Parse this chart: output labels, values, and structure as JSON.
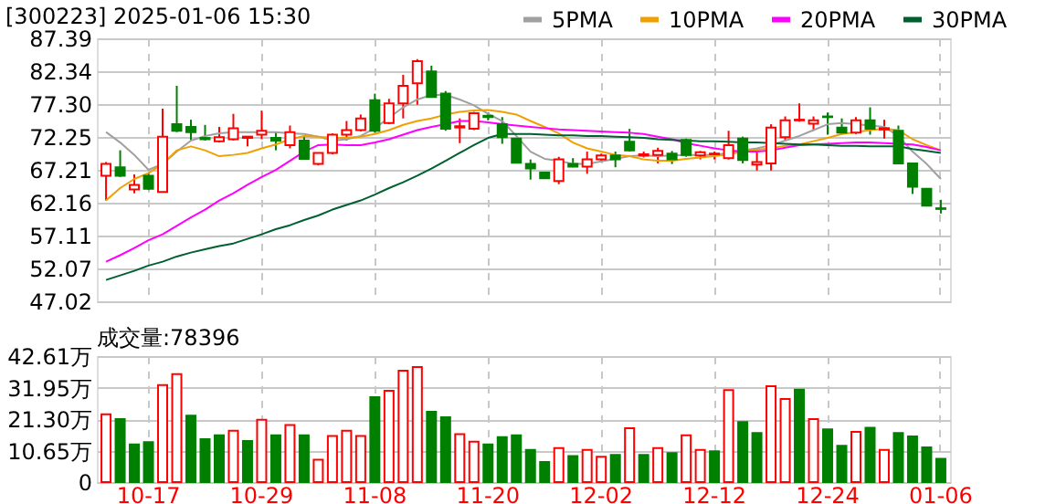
{
  "chart_data": [
    {
      "type": "candlestick",
      "title": "[300223] 2025-01-06 15:30",
      "categories": [
        null,
        null,
        null,
        null,
        null,
        null,
        null,
        null,
        null,
        null,
        null,
        null,
        null,
        null,
        null,
        null,
        null,
        null,
        null,
        null,
        null,
        null,
        null,
        null,
        null,
        null,
        null,
        null,
        null,
        null,
        null,
        null,
        null,
        null,
        null,
        null,
        null,
        null,
        null,
        null,
        null,
        null,
        null,
        null,
        null,
        null,
        null,
        null,
        null,
        null,
        null,
        null,
        null,
        null,
        null,
        null,
        null,
        null,
        null,
        null
      ],
      "ohlc": [
        [
          66.3,
          68.4,
          62.5,
          68.1
        ],
        [
          67.6,
          70.2,
          66.1,
          66.3
        ],
        [
          64.2,
          66.5,
          63.6,
          64.9
        ],
        [
          66.3,
          66.7,
          64.1,
          64.3
        ],
        [
          63.8,
          76.6,
          63.8,
          72.3
        ],
        [
          74.2,
          80.1,
          73.0,
          73.2
        ],
        [
          73.8,
          74.9,
          71.7,
          73.0
        ],
        [
          72.1,
          74.1,
          71.7,
          71.9
        ],
        [
          71.6,
          73.8,
          71.4,
          72.2
        ],
        [
          71.9,
          75.8,
          71.7,
          73.6
        ],
        [
          72.1,
          72.3,
          70.8,
          72.3
        ],
        [
          72.6,
          76.3,
          71.9,
          73.2
        ],
        [
          72.1,
          73.0,
          70.2,
          71.7
        ],
        [
          71.0,
          74.0,
          70.5,
          73.0
        ],
        [
          71.7,
          72.4,
          68.9,
          68.9
        ],
        [
          68.1,
          69.8,
          67.9,
          69.8
        ],
        [
          69.8,
          72.8,
          69.6,
          72.6
        ],
        [
          72.6,
          74.7,
          71.7,
          73.3
        ],
        [
          73.3,
          75.7,
          73.1,
          75.1
        ],
        [
          77.9,
          78.9,
          72.9,
          73.2
        ],
        [
          74.4,
          78.1,
          74.2,
          77.4
        ],
        [
          77.4,
          81.8,
          75.1,
          80.1
        ],
        [
          80.5,
          84.2,
          77.2,
          83.9
        ],
        [
          82.3,
          83.2,
          78.4,
          78.4
        ],
        [
          78.9,
          79.3,
          73.2,
          73.5
        ],
        [
          73.7,
          75.1,
          71.3,
          73.9
        ],
        [
          73.5,
          76.1,
          73.3,
          75.9
        ],
        [
          75.5,
          76.0,
          74.8,
          75.3
        ],
        [
          74.2,
          75.3,
          71.2,
          72.2
        ],
        [
          72.0,
          72.0,
          68.3,
          68.3
        ],
        [
          68.1,
          68.8,
          65.7,
          67.4
        ],
        [
          66.8,
          66.8,
          65.9,
          65.9
        ],
        [
          65.5,
          69.2,
          65.0,
          68.8
        ],
        [
          68.1,
          69.0,
          67.6,
          67.7
        ],
        [
          67.7,
          70.0,
          66.6,
          68.8
        ],
        [
          68.8,
          69.7,
          68.5,
          69.4
        ],
        [
          69.4,
          70.0,
          67.6,
          68.8
        ],
        [
          71.5,
          73.5,
          70.0,
          70.2
        ],
        [
          69.4,
          70.0,
          69.1,
          69.6
        ],
        [
          69.5,
          70.6,
          68.2,
          70.1
        ],
        [
          69.7,
          70.1,
          68.1,
          68.8
        ],
        [
          71.8,
          72.0,
          69.2,
          69.5
        ],
        [
          69.4,
          70.1,
          68.8,
          69.9
        ],
        [
          69.6,
          70.0,
          68.8,
          69.7
        ],
        [
          69.0,
          73.2,
          68.8,
          71.0
        ],
        [
          72.0,
          72.3,
          68.2,
          68.7
        ],
        [
          68.0,
          69.9,
          67.1,
          68.4
        ],
        [
          68.2,
          74.2,
          67.1,
          73.7
        ],
        [
          72.2,
          75.4,
          71.6,
          74.8
        ],
        [
          74.8,
          77.4,
          74.6,
          74.9
        ],
        [
          74.3,
          75.4,
          73.2,
          74.8
        ],
        [
          75.4,
          76.0,
          72.6,
          75.3
        ],
        [
          73.7,
          75.1,
          72.7,
          72.9
        ],
        [
          72.9,
          75.3,
          72.7,
          74.8
        ],
        [
          74.8,
          76.8,
          72.6,
          73.5
        ],
        [
          73.4,
          74.9,
          72.0,
          73.6
        ],
        [
          73.2,
          74.0,
          68.2,
          68.2
        ],
        [
          68.2,
          68.2,
          63.5,
          64.6
        ],
        [
          64.3,
          64.3,
          61.7,
          61.7
        ],
        [
          61.3,
          62.6,
          60.5,
          61.2
        ]
      ],
      "colors": [
        "#ff0000",
        "#008000",
        "#ff0000",
        "#008000",
        "#ff0000",
        "#008000",
        "#008000",
        "#008000",
        "#ff0000",
        "#ff0000",
        "#ff0000",
        "#ff0000",
        "#008000",
        "#ff0000",
        "#008000",
        "#ff0000",
        "#ff0000",
        "#ff0000",
        "#ff0000",
        "#008000",
        "#ff0000",
        "#ff0000",
        "#ff0000",
        "#008000",
        "#008000",
        "#ff0000",
        "#ff0000",
        "#008000",
        "#008000",
        "#008000",
        "#008000",
        "#008000",
        "#ff0000",
        "#008000",
        "#ff0000",
        "#ff0000",
        "#008000",
        "#008000",
        "#ff0000",
        "#ff0000",
        "#008000",
        "#008000",
        "#ff0000",
        "#ff0000",
        "#ff0000",
        "#008000",
        "#ff0000",
        "#ff0000",
        "#ff0000",
        "#ff0000",
        "#ff0000",
        "#008000",
        "#008000",
        "#ff0000",
        "#008000",
        "#ff0000",
        "#008000",
        "#008000",
        "#008000",
        "#008000"
      ],
      "series": [
        {
          "name": "5PMA",
          "type": "line",
          "color": "#a0a0a0",
          "values": [
            73.0,
            71.4,
            69.5,
            67.2,
            68.1,
            70.0,
            71.7,
            72.4,
            72.8,
            73.0,
            73.0,
            73.0,
            73.0,
            72.8,
            72.7,
            72.3,
            71.7,
            71.9,
            72.4,
            73.6,
            75.2,
            76.8,
            78.0,
            78.7,
            78.7,
            78.0,
            77.1,
            75.8,
            74.7,
            72.4,
            70.0,
            68.9,
            68.6,
            68.1,
            68.1,
            68.5,
            68.9,
            69.3,
            69.4,
            69.3,
            69.4,
            69.5,
            69.5,
            69.5,
            69.8,
            70.2,
            70.5,
            71.0,
            71.7,
            72.4,
            73.3,
            74.2,
            74.4,
            74.2,
            74.0,
            73.8,
            72.4,
            70.0,
            68.1,
            65.8
          ]
        },
        {
          "name": "10PMA",
          "type": "line",
          "color": "#f0a000",
          "values": [
            62.5,
            64.4,
            65.8,
            66.7,
            68.1,
            70.2,
            70.8,
            70.2,
            69.3,
            69.5,
            69.8,
            70.5,
            71.1,
            71.9,
            72.4,
            72.3,
            72.1,
            72.1,
            72.3,
            72.7,
            73.3,
            74.1,
            74.7,
            75.1,
            75.7,
            76.1,
            76.3,
            76.4,
            76.1,
            75.7,
            74.7,
            73.8,
            72.8,
            71.4,
            70.5,
            70.0,
            69.5,
            69.3,
            68.8,
            68.6,
            68.6,
            68.9,
            69.1,
            69.3,
            69.6,
            70.0,
            70.3,
            70.5,
            70.9,
            71.1,
            71.6,
            72.1,
            72.7,
            73.0,
            73.3,
            73.5,
            73.3,
            71.9,
            71.0,
            70.2
          ]
        },
        {
          "name": "20PMA",
          "type": "line",
          "color": "#ff00ff",
          "values": [
            53.1,
            54.1,
            55.2,
            56.4,
            57.3,
            58.6,
            59.9,
            61.1,
            62.5,
            63.6,
            64.9,
            66.1,
            67.2,
            68.6,
            70.0,
            71.0,
            71.1,
            71.0,
            71.0,
            71.4,
            71.9,
            72.6,
            73.3,
            73.8,
            74.2,
            74.7,
            74.7,
            74.5,
            74.2,
            74.0,
            73.8,
            73.6,
            73.4,
            73.3,
            73.2,
            73.1,
            73.0,
            72.9,
            72.7,
            72.3,
            71.9,
            71.3,
            70.9,
            70.5,
            70.2,
            70.0,
            70.0,
            70.2,
            70.6,
            71.0,
            71.1,
            71.2,
            71.3,
            71.4,
            71.4,
            71.3,
            71.2,
            71.1,
            70.7,
            70.2
          ]
        },
        {
          "name": "30PMA",
          "type": "line",
          "color": "#006030",
          "values": [
            50.3,
            51.0,
            51.7,
            52.5,
            53.1,
            53.9,
            54.5,
            55.0,
            55.5,
            55.9,
            56.6,
            57.3,
            58.1,
            58.7,
            59.5,
            60.2,
            61.1,
            61.8,
            62.5,
            63.4,
            64.4,
            65.3,
            66.3,
            67.4,
            68.6,
            69.8,
            71.0,
            72.1,
            72.7,
            72.7,
            72.7,
            72.6,
            72.5,
            72.5,
            72.4,
            72.4,
            72.3,
            72.2,
            72.1,
            71.9,
            71.8,
            71.7,
            71.6,
            71.6,
            71.5,
            71.4,
            71.4,
            71.3,
            71.2,
            71.1,
            71.1,
            71.0,
            70.9,
            70.9,
            70.8,
            70.8,
            70.8,
            70.4,
            70.1,
            69.8
          ]
        }
      ],
      "ylim": [
        47.02,
        87.39
      ],
      "yticks": [
        47.02,
        52.07,
        57.11,
        62.16,
        67.21,
        72.25,
        {
          "value": 77.3,
          "label": "77.30"
        },
        82.34,
        87.39
      ],
      "grid": true,
      "legend": "top right",
      "tick_labels": "y"
    },
    {
      "type": "bar",
      "title": "成交量:78396",
      "categories": [
        null,
        null,
        null,
        "10-17",
        null,
        null,
        null,
        null,
        null,
        null,
        null,
        "10-29",
        null,
        null,
        null,
        null,
        null,
        null,
        null,
        "11-08",
        null,
        null,
        null,
        null,
        null,
        null,
        null,
        "11-20",
        null,
        null,
        null,
        null,
        null,
        null,
        null,
        "12-02",
        null,
        null,
        null,
        null,
        null,
        null,
        null,
        "12-12",
        null,
        null,
        null,
        null,
        null,
        null,
        null,
        "12-24",
        null,
        null,
        null,
        null,
        null,
        null,
        null,
        "01-06"
      ],
      "values": [
        22.9,
        21.3,
        12.7,
        13.5,
        32.8,
        36.5,
        22.5,
        14.5,
        15.8,
        17.4,
        13.9,
        21.1,
        15.8,
        19.3,
        15.8,
        7.6,
        15.6,
        17.4,
        15.6,
        28.7,
        30.9,
        37.7,
        38.9,
        23.8,
        21.9,
        16.2,
        13.7,
        12.7,
        15.2,
        15.8,
        10.9,
        6.8,
        11.5,
        8.8,
        10.9,
        8.6,
        9.2,
        18.2,
        9.2,
        11.5,
        9.8,
        15.8,
        10.9,
        10.4,
        31.1,
        20.3,
        16.6,
        32.4,
        28.1,
        31.3,
        21.3,
        17.8,
        12.3,
        17.0,
        18.4,
        10.9,
        16.6,
        15.4,
        11.7,
        7.84
      ],
      "colors": [
        "#ff0000",
        "#008000",
        "#008000",
        "#008000",
        "#ff0000",
        "#ff0000",
        "#008000",
        "#008000",
        "#008000",
        "#ff0000",
        "#008000",
        "#ff0000",
        "#008000",
        "#ff0000",
        "#008000",
        "#ff0000",
        "#ff0000",
        "#ff0000",
        "#ff0000",
        "#008000",
        "#ff0000",
        "#ff0000",
        "#ff0000",
        "#008000",
        "#008000",
        "#ff0000",
        "#ff0000",
        "#008000",
        "#008000",
        "#008000",
        "#008000",
        "#008000",
        "#ff0000",
        "#008000",
        "#ff0000",
        "#ff0000",
        "#008000",
        "#ff0000",
        "#008000",
        "#ff0000",
        "#008000",
        "#ff0000",
        "#ff0000",
        "#008000",
        "#ff0000",
        "#008000",
        "#008000",
        "#ff0000",
        "#ff0000",
        "#008000",
        "#ff0000",
        "#008000",
        "#008000",
        "#ff0000",
        "#008000",
        "#ff0000",
        "#008000",
        "#008000",
        "#008000",
        "#008000"
      ],
      "ylim": [
        0,
        42.61
      ],
      "yticks": [
        0,
        {
          "value": 10.65,
          "label": "10.65万"
        },
        {
          "value": 21.3,
          "label": "21.30万"
        },
        {
          "value": 31.95,
          "label": "31.95万"
        },
        {
          "value": 42.61,
          "label": "42.61万"
        }
      ],
      "grid": true
    }
  ]
}
